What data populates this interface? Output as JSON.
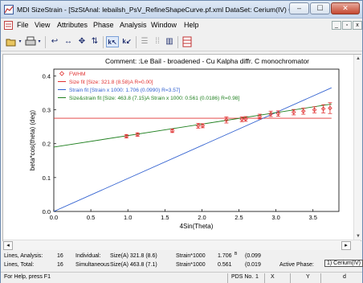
{
  "window": {
    "title": "MDI SizeStrain - [SzStAnal: lebailsh_PsV_RefineShapeCurve.pf.xml  DataSet: Cerium(IV) Oxide]",
    "min_glyph": "–",
    "max_glyph": "☐",
    "close_glyph": "✕"
  },
  "menu": {
    "items": [
      "File",
      "View",
      "Attributes",
      "Phase",
      "Analysis",
      "Window",
      "Help"
    ],
    "mdi_min": "_",
    "mdi_max": "▫",
    "mdi_close": "x"
  },
  "toolbar": {
    "icons": [
      "open-file-icon",
      "dropdown-arrow-icon",
      "print-icon",
      "dropdown-arrow-icon",
      "undo-curve-icon",
      "horizontal-arrows-icon",
      "move-icon",
      "vertical-arrows-icon",
      "pointer-k-icon",
      "pointer-t-icon",
      "lines-icon",
      "grid-icon",
      "bar-chart-icon",
      "table-icon"
    ]
  },
  "plot": {
    "comment": "Comment: :Le Bail - broadened - Cu Kalpha diffr. C monochromator",
    "legend": [
      {
        "label": "FWHM",
        "color": "#e03030",
        "marker": "diamond"
      },
      {
        "label": "Size fit [Size: 321.8 (8.58)A  R=0.00]",
        "color": "#e03030",
        "marker": "line"
      },
      {
        "label": "Strain fit [Strain x 1000: 1.706 (0.0990)  R=3.57]",
        "color": "#3060d0",
        "marker": "line"
      },
      {
        "label": "Size&strain fit [Size: 463.8 (7.15)A  Strain x 1000: 0.561 (0.0186)  R=0.98]",
        "color": "#208020",
        "marker": "line"
      }
    ]
  },
  "chart_data": {
    "type": "scatter",
    "xlabel": "4Sin(Theta)",
    "ylabel": "beta*cos(theta) (deg)",
    "xlim": [
      0.0,
      3.85
    ],
    "ylim": [
      0.0,
      0.42
    ],
    "xticks": [
      "0.0",
      "0.5",
      "1.0",
      "1.5",
      "2.0",
      "2.5",
      "3.0",
      "3.5"
    ],
    "yticks": [
      "0.0",
      "0.1",
      "0.2",
      "0.3",
      "0.4"
    ],
    "grid": false,
    "legend_position": "top-left",
    "series": [
      {
        "name": "FWHM",
        "color": "#e03030",
        "x": [
          0.98,
          1.13,
          1.6,
          1.95,
          2.01,
          2.33,
          2.54,
          2.59,
          2.78,
          2.93,
          3.03,
          3.24,
          3.37,
          3.52,
          3.64,
          3.73
        ],
        "y": [
          0.222,
          0.227,
          0.238,
          0.253,
          0.253,
          0.27,
          0.272,
          0.273,
          0.28,
          0.288,
          0.289,
          0.293,
          0.296,
          0.3,
          0.303,
          0.305
        ],
        "err": [
          0.005,
          0.005,
          0.005,
          0.007,
          0.006,
          0.009,
          0.007,
          0.007,
          0.007,
          0.008,
          0.008,
          0.008,
          0.009,
          0.009,
          0.012,
          0.016
        ]
      }
    ],
    "lines": [
      {
        "name": "Size fit",
        "color": "#e03030",
        "x": [
          0.0,
          3.75
        ],
        "y": [
          0.275,
          0.275
        ]
      },
      {
        "name": "Strain fit",
        "color": "#3060d0",
        "x": [
          0.0,
          3.75
        ],
        "y": [
          0.0,
          0.365
        ]
      },
      {
        "name": "Size&strain fit",
        "color": "#208020",
        "x": [
          0.0,
          3.75
        ],
        "y": [
          0.19,
          0.317
        ]
      }
    ]
  },
  "info": {
    "row1": {
      "label": "Lines, Analysis:",
      "count": "16",
      "mode": "Individual:",
      "size": "Size(A)  321.8 (8.6)",
      "strain": "Strain*1000",
      "strain_val": "1.706",
      "strain_sup": "B",
      "strain_err": "(0.099"
    },
    "row2": {
      "label": "Lines, Total:",
      "count": "16",
      "mode": "Simultaneous",
      "size": "Size(A)  463.8 (7.1)",
      "strain": "Strain*1000",
      "strain_val": "0.561",
      "strain_err": "(0.019",
      "phase_label": "Active Phase:",
      "phase_value": "1) Cerium(IV)"
    }
  },
  "status": {
    "help": "For Help, press F1",
    "pds": "PDS No.",
    "pds_val": "1",
    "x": "X",
    "y": "Y",
    "d": "d"
  }
}
